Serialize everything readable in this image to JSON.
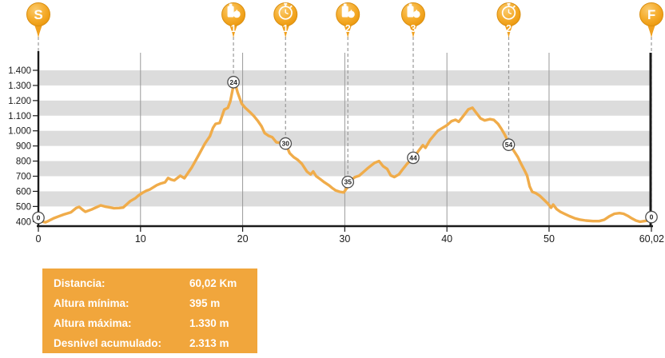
{
  "chart_data": {
    "type": "line",
    "title": "",
    "xlabel": "",
    "ylabel": "",
    "xlim": [
      0,
      60.02
    ],
    "ylim": [
      400,
      1400
    ],
    "grid": "horizontal-bands-and-vertical-lines",
    "x_ticks": [
      {
        "v": 0,
        "label": "0"
      },
      {
        "v": 10,
        "label": "10"
      },
      {
        "v": 20,
        "label": "20"
      },
      {
        "v": 30,
        "label": "30"
      },
      {
        "v": 40,
        "label": "40"
      },
      {
        "v": 50,
        "label": "50"
      },
      {
        "v": 60.02,
        "label": "60,02"
      }
    ],
    "y_ticks": [
      {
        "v": 400,
        "label": "400"
      },
      {
        "v": 500,
        "label": "500"
      },
      {
        "v": 600,
        "label": "600"
      },
      {
        "v": 700,
        "label": "700"
      },
      {
        "v": 800,
        "label": "800"
      },
      {
        "v": 900,
        "label": "900"
      },
      {
        "v": 1000,
        "label": "1.000"
      },
      {
        "v": 1100,
        "label": "1.100"
      },
      {
        "v": 1200,
        "label": "1.200"
      },
      {
        "v": 1300,
        "label": "1.300"
      },
      {
        "v": 1400,
        "label": "1.400"
      }
    ],
    "x_gridlines": [
      10,
      20,
      30,
      40,
      50
    ],
    "bands": [
      [
        500,
        600
      ],
      [
        700,
        800
      ],
      [
        900,
        1000
      ],
      [
        1100,
        1200
      ],
      [
        1300,
        1400
      ]
    ],
    "series": [
      {
        "name": "elevation-profile",
        "points": [
          [
            0,
            410
          ],
          [
            0.4,
            400
          ],
          [
            0.7,
            395
          ],
          [
            1.0,
            405
          ],
          [
            1.5,
            422
          ],
          [
            2.0,
            435
          ],
          [
            2.5,
            447
          ],
          [
            3.2,
            462
          ],
          [
            3.7,
            490
          ],
          [
            4.0,
            497
          ],
          [
            4.3,
            480
          ],
          [
            4.6,
            465
          ],
          [
            5.2,
            480
          ],
          [
            5.7,
            495
          ],
          [
            6.1,
            507
          ],
          [
            6.5,
            500
          ],
          [
            6.9,
            495
          ],
          [
            7.4,
            488
          ],
          [
            7.9,
            490
          ],
          [
            8.3,
            493
          ],
          [
            9.0,
            535
          ],
          [
            9.5,
            555
          ],
          [
            9.8,
            572
          ],
          [
            10.2,
            590
          ],
          [
            10.6,
            605
          ],
          [
            10.9,
            612
          ],
          [
            11.6,
            641
          ],
          [
            12.0,
            652
          ],
          [
            12.4,
            660
          ],
          [
            12.7,
            688
          ],
          [
            13.0,
            678
          ],
          [
            13.3,
            672
          ],
          [
            13.9,
            703
          ],
          [
            14.3,
            687
          ],
          [
            15.0,
            756
          ],
          [
            15.7,
            840
          ],
          [
            16.3,
            915
          ],
          [
            16.8,
            965
          ],
          [
            17.1,
            1020
          ],
          [
            17.35,
            1046
          ],
          [
            17.75,
            1052
          ],
          [
            18.2,
            1140
          ],
          [
            18.55,
            1152
          ],
          [
            18.8,
            1196
          ],
          [
            19.0,
            1266
          ],
          [
            19.2,
            1328
          ],
          [
            19.5,
            1255
          ],
          [
            19.9,
            1180
          ],
          [
            20.25,
            1152
          ],
          [
            20.7,
            1125
          ],
          [
            21.1,
            1098
          ],
          [
            21.5,
            1064
          ],
          [
            21.85,
            1030
          ],
          [
            22.15,
            985
          ],
          [
            22.55,
            967
          ],
          [
            22.9,
            958
          ],
          [
            23.3,
            924
          ],
          [
            24.2,
            916
          ],
          [
            24.6,
            852
          ],
          [
            25.0,
            826
          ],
          [
            25.4,
            808
          ],
          [
            25.8,
            782
          ],
          [
            26.3,
            730
          ],
          [
            26.65,
            712
          ],
          [
            26.9,
            731
          ],
          [
            27.2,
            700
          ],
          [
            27.5,
            686
          ],
          [
            28.0,
            660
          ],
          [
            28.45,
            640
          ],
          [
            28.75,
            623
          ],
          [
            29.1,
            606
          ],
          [
            29.5,
            597
          ],
          [
            29.9,
            593
          ],
          [
            30.3,
            630
          ],
          [
            30.6,
            675
          ],
          [
            31.0,
            694
          ],
          [
            31.4,
            703
          ],
          [
            31.85,
            729
          ],
          [
            32.3,
            756
          ],
          [
            32.9,
            788
          ],
          [
            33.35,
            800
          ],
          [
            33.75,
            766
          ],
          [
            34.15,
            748
          ],
          [
            34.5,
            705
          ],
          [
            34.85,
            695
          ],
          [
            35.3,
            712
          ],
          [
            35.7,
            748
          ],
          [
            36.1,
            782
          ],
          [
            36.5,
            808
          ],
          [
            36.75,
            822
          ],
          [
            37.25,
            870
          ],
          [
            37.65,
            905
          ],
          [
            37.9,
            888
          ],
          [
            38.35,
            940
          ],
          [
            38.8,
            976
          ],
          [
            39.1,
            1000
          ],
          [
            40.0,
            1037
          ],
          [
            40.45,
            1064
          ],
          [
            40.85,
            1073
          ],
          [
            41.15,
            1060
          ],
          [
            41.6,
            1098
          ],
          [
            42.1,
            1142
          ],
          [
            42.5,
            1152
          ],
          [
            42.9,
            1117
          ],
          [
            43.3,
            1082
          ],
          [
            43.7,
            1069
          ],
          [
            44.2,
            1077
          ],
          [
            44.6,
            1072
          ],
          [
            45.0,
            1046
          ],
          [
            45.35,
            1011
          ],
          [
            45.65,
            976
          ],
          [
            45.9,
            941
          ],
          [
            46.1,
            910
          ],
          [
            46.45,
            878
          ],
          [
            46.7,
            852
          ],
          [
            46.95,
            826
          ],
          [
            47.2,
            790
          ],
          [
            47.6,
            738
          ],
          [
            47.85,
            703
          ],
          [
            48.1,
            632
          ],
          [
            48.35,
            597
          ],
          [
            48.7,
            588
          ],
          [
            49.1,
            570
          ],
          [
            49.5,
            544
          ],
          [
            49.9,
            518
          ],
          [
            50.2,
            492
          ],
          [
            50.4,
            512
          ],
          [
            50.75,
            482
          ],
          [
            51.1,
            465
          ],
          [
            51.5,
            452
          ],
          [
            52.0,
            436
          ],
          [
            52.5,
            422
          ],
          [
            53.0,
            413
          ],
          [
            53.6,
            407
          ],
          [
            54.3,
            403
          ],
          [
            54.9,
            403
          ],
          [
            55.4,
            412
          ],
          [
            55.9,
            435
          ],
          [
            56.4,
            452
          ],
          [
            56.9,
            456
          ],
          [
            57.3,
            452
          ],
          [
            57.7,
            438
          ],
          [
            58.1,
            421
          ],
          [
            58.5,
            407
          ],
          [
            58.9,
            399
          ],
          [
            59.3,
            403
          ],
          [
            59.7,
            407
          ],
          [
            60.02,
            422
          ]
        ]
      }
    ],
    "waypoints": [
      {
        "label": "0",
        "km": 0,
        "elev": 425
      },
      {
        "label": "24",
        "km": 19.1,
        "elev": 1322
      },
      {
        "label": "30",
        "km": 24.2,
        "elev": 916
      },
      {
        "label": "35",
        "km": 30.3,
        "elev": 662
      },
      {
        "label": "44",
        "km": 36.7,
        "elev": 822
      },
      {
        "label": "54",
        "km": 46.05,
        "elev": 908
      },
      {
        "label": "0",
        "km": 60.02,
        "elev": 430
      }
    ],
    "markers": [
      {
        "type": "start",
        "icon": "start-letter",
        "glyph": "S",
        "number": "",
        "km": 0
      },
      {
        "type": "refreshment",
        "icon": "bottle-apple",
        "glyph": "",
        "number": "1",
        "km": 19.1
      },
      {
        "type": "timing",
        "icon": "stopwatch",
        "glyph": "",
        "number": "1",
        "km": 24.2
      },
      {
        "type": "refreshment",
        "icon": "bottle-apple",
        "glyph": "",
        "number": "2",
        "km": 30.3
      },
      {
        "type": "refreshment",
        "icon": "bottle-apple",
        "glyph": "",
        "number": "3",
        "km": 36.7
      },
      {
        "type": "timing",
        "icon": "stopwatch",
        "glyph": "",
        "number": "2",
        "km": 46.05
      },
      {
        "type": "finish",
        "icon": "finish-letter",
        "glyph": "F",
        "number": "",
        "km": 60.02
      }
    ],
    "legend_position": "none",
    "colors": {
      "line": "#F0AC4A",
      "band": "#DCDCDC",
      "grid": "#999999",
      "axis": "#1A1A1A",
      "pin_light": "#FBCB6E",
      "pin_mid": "#F5AC2C",
      "pin_dark": "#EB9609",
      "pin_stroke": "#D98E0F",
      "pin_tail": "#F0A01E",
      "waypoint_stroke": "#4D4D4D",
      "waypoint_text": "#222222"
    }
  },
  "stats": {
    "bg": "#F1A63C",
    "rows": [
      {
        "label": "Distancia:",
        "value": "60,02 Km"
      },
      {
        "label": "Altura mínima:",
        "value": "395 m"
      },
      {
        "label": "Altura máxima:",
        "value": "1.330 m"
      },
      {
        "label": "Desnivel acumulado:",
        "value": "2.313 m"
      }
    ]
  }
}
